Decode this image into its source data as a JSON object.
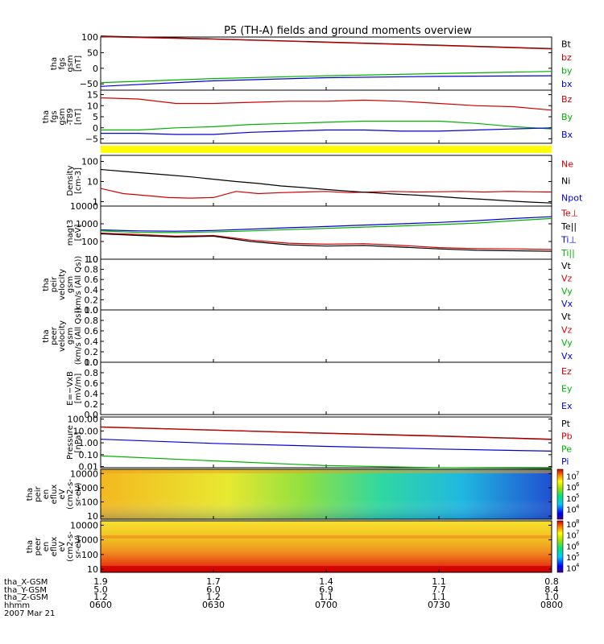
{
  "title": "P5 (TH-A) fields and ground moments overview",
  "time_axis": {
    "ticks": [
      "0600",
      "0630",
      "0700",
      "0730",
      "0800"
    ],
    "rows": [
      {
        "label": "tha_X-GSM",
        "values": [
          "1.9",
          "1.7",
          "1.4",
          "1.1",
          "0.8"
        ]
      },
      {
        "label": "tha_Y-GSM",
        "values": [
          "5.0",
          "6.0",
          "6.9",
          "7.7",
          "8.4"
        ]
      },
      {
        "label": "tha_Z-GSM",
        "values": [
          "1.2",
          "1.2",
          "1.1",
          "1.1",
          "1.0"
        ]
      },
      {
        "label": "hhmm",
        "values": []
      },
      {
        "label": "2007 Mar 21",
        "values": []
      }
    ]
  },
  "colors": {
    "black": "#000000",
    "red": "#d00000",
    "green": "#00d000",
    "blue": "#0000d0",
    "yellow": "#ffff00"
  },
  "panels": [
    {
      "id": "fgs",
      "ylabel": [
        "tha",
        "fgs",
        "gsm",
        "[nT]"
      ],
      "scale": "linear",
      "ylim": [
        -70,
        100
      ],
      "ticks": [
        "100",
        "50",
        "0",
        "−50"
      ],
      "tickvals": [
        100,
        50,
        0,
        -50
      ],
      "legend": [
        {
          "name": "Bt",
          "color": "#000000"
        },
        {
          "name": "bz",
          "color": "#d00000"
        },
        {
          "name": "by",
          "color": "#00b000"
        },
        {
          "name": "bx",
          "color": "#0000d0"
        }
      ]
    },
    {
      "id": "t89",
      "ylabel": [
        "tha",
        "fgs",
        "gsm",
        "-T89",
        "[nT]"
      ],
      "scale": "linear",
      "ylim": [
        -7,
        17
      ],
      "ticks": [
        "15",
        "10",
        "5",
        "0",
        "−5"
      ],
      "tickvals": [
        15,
        10,
        5,
        0,
        -5
      ],
      "legend": [
        {
          "name": "Bz",
          "color": "#d00000"
        },
        {
          "name": "By",
          "color": "#00b000"
        },
        {
          "name": "Bx",
          "color": "#0000d0"
        }
      ]
    },
    {
      "id": "density",
      "ylabel": [
        "Density",
        "[cm-3]"
      ],
      "scale": "log",
      "ylim": [
        0.6,
        200
      ],
      "ticks": [
        "100",
        "10",
        "1"
      ],
      "tickvals": [
        100,
        10,
        1
      ],
      "legend": [
        {
          "name": "Ne",
          "color": "#d00000"
        },
        {
          "name": "Ni",
          "color": "#000000"
        },
        {
          "name": "Npot",
          "color": "#0000d0"
        }
      ]
    },
    {
      "id": "temp",
      "ylabel": [
        "magt3",
        "[eV]"
      ],
      "scale": "log",
      "ylim": [
        10,
        10000
      ],
      "ticks": [
        "10000",
        "1000",
        "100",
        "10"
      ],
      "tickvals": [
        10000,
        1000,
        100,
        10
      ],
      "legend": [
        {
          "name": "Te⊥",
          "color": "#d00000"
        },
        {
          "name": "Te||",
          "color": "#000000"
        },
        {
          "name": "Ti⊥",
          "color": "#0000d0"
        },
        {
          "name": "Ti||",
          "color": "#00b000"
        }
      ]
    },
    {
      "id": "peir_v",
      "ylabel": [
        "tha",
        "peir",
        "velocity",
        "gsm",
        "(km/s (All Qs))"
      ],
      "scale": "linear",
      "ylim": [
        0,
        1
      ],
      "ticks": [
        "1.0",
        "0.8",
        "0.6",
        "0.4",
        "0.2",
        "0.0"
      ],
      "tickvals": [
        1.0,
        0.8,
        0.6,
        0.4,
        0.2,
        0.0
      ],
      "legend": [
        {
          "name": "Vt",
          "color": "#000000"
        },
        {
          "name": "Vz",
          "color": "#d00000"
        },
        {
          "name": "Vy",
          "color": "#00b000"
        },
        {
          "name": "Vx",
          "color": "#0000d0"
        }
      ]
    },
    {
      "id": "peer_v",
      "ylabel": [
        "tha",
        "peer",
        "velocity",
        "gsm",
        "(km/s (All Qs))"
      ],
      "scale": "linear",
      "ylim": [
        0,
        1
      ],
      "ticks": [
        "1.0",
        "0.8",
        "0.6",
        "0.4",
        "0.2",
        "0.0"
      ],
      "tickvals": [
        1.0,
        0.8,
        0.6,
        0.4,
        0.2,
        0.0
      ],
      "legend": [
        {
          "name": "Vt",
          "color": "#000000"
        },
        {
          "name": "Vz",
          "color": "#d00000"
        },
        {
          "name": "Vy",
          "color": "#00b000"
        },
        {
          "name": "Vx",
          "color": "#0000d0"
        }
      ]
    },
    {
      "id": "efield",
      "ylabel": [
        "E=−VxB",
        "[mV/m]"
      ],
      "scale": "linear",
      "ylim": [
        0,
        1
      ],
      "ticks": [
        "1.0",
        "0.8",
        "0.6",
        "0.4",
        "0.2",
        "0.0"
      ],
      "tickvals": [
        1.0,
        0.8,
        0.6,
        0.4,
        0.2,
        0.0
      ],
      "legend": [
        {
          "name": "Ez",
          "color": "#d00000"
        },
        {
          "name": "Ey",
          "color": "#00b000"
        },
        {
          "name": "Ex",
          "color": "#0000d0"
        }
      ]
    },
    {
      "id": "pressure",
      "ylabel": [
        "Pressure",
        "[nPa]"
      ],
      "scale": "log",
      "ylim": [
        0.008,
        150
      ],
      "ticks": [
        "100.00",
        "10.00",
        "1.00",
        "0.10",
        "0.01"
      ],
      "tickvals": [
        100,
        10,
        1,
        0.1,
        0.01
      ],
      "legend": [
        {
          "name": "Pt",
          "color": "#000000"
        },
        {
          "name": "Pb",
          "color": "#d00000"
        },
        {
          "name": "Pe",
          "color": "#00b000"
        },
        {
          "name": "Pi",
          "color": "#0000d0"
        }
      ]
    },
    {
      "id": "peir_spec",
      "ylabel": [
        "tha",
        "peir",
        "en",
        "eflux",
        "eV",
        "(cm2-s-",
        "sr-eV)"
      ],
      "scale": "log",
      "ylim": [
        6,
        20000
      ],
      "ticks": [
        "10000",
        "1000",
        "100",
        "10"
      ],
      "tickvals": [
        10000,
        1000,
        100,
        10
      ],
      "colorbar": {
        "ticks": [
          "10",
          "10",
          "10",
          "10"
        ],
        "exps": [
          "7",
          "6",
          "5",
          "4"
        ],
        "expvals": [
          7,
          6,
          5,
          4
        ],
        "range": [
          3.1,
          7.6
        ]
      }
    },
    {
      "id": "peer_spec",
      "ylabel": [
        "tha",
        "peer",
        "en",
        "eflux",
        "eV",
        "(cm2-s-",
        "sr-eV)"
      ],
      "scale": "log",
      "ylim": [
        6,
        20000
      ],
      "ticks": [
        "10000",
        "1000",
        "100",
        "10"
      ],
      "tickvals": [
        10000,
        1000,
        100,
        10
      ],
      "colorbar": {
        "ticks": [
          "10",
          "10",
          "10",
          "10",
          "10"
        ],
        "exps": [
          "8",
          "7",
          "6",
          "5",
          "4"
        ],
        "expvals": [
          8,
          7,
          6,
          5,
          4
        ],
        "range": [
          3.6,
          8.3
        ]
      }
    }
  ],
  "chart_data": {
    "type": "line",
    "title": "P5 (TH-A) fields and ground moments overview",
    "x_range": [
      "0600",
      "0800"
    ],
    "panels": {
      "fgs": {
        "x": [
          0,
          30,
          60,
          90,
          120
        ],
        "series": [
          {
            "name": "Bt",
            "values": [
              103,
              94,
              84,
              74,
              63
            ]
          },
          {
            "name": "bz",
            "values": [
              101,
              93,
              83,
              73,
              62
            ]
          },
          {
            "name": "by",
            "values": [
              -46,
              -33,
              -24,
              -17,
              -10
            ]
          },
          {
            "name": "bx",
            "values": [
              -58,
              -40,
              -30,
              -26,
              -24
            ]
          }
        ]
      },
      "t89": {
        "x": [
          0,
          10,
          20,
          30,
          40,
          50,
          60,
          70,
          80,
          90,
          100,
          110,
          120
        ],
        "series": [
          {
            "name": "Bz",
            "values": [
              13.5,
              13,
              11,
              11,
              11.5,
              12,
              12,
              12.5,
              12,
              11,
              10,
              9.5,
              8
            ]
          },
          {
            "name": "By",
            "values": [
              -1,
              -1,
              0,
              0.5,
              1.5,
              2,
              2.5,
              3,
              3,
              3,
              2,
              0.5,
              -0.5
            ]
          },
          {
            "name": "Bx",
            "values": [
              -2.5,
              -2.5,
              -3,
              -3,
              -2,
              -1.5,
              -1,
              -1,
              -1.5,
              -1.5,
              -1,
              -0.5,
              0
            ]
          }
        ]
      },
      "density": {
        "x": [
          0,
          6,
          12,
          18,
          24,
          30,
          36,
          42,
          48,
          54,
          60,
          66,
          72,
          78,
          84,
          90,
          96,
          102,
          108,
          114,
          120
        ],
        "series": [
          {
            "name": "Ne",
            "values": [
              4.5,
              2.5,
              2.0,
              1.6,
              1.5,
              1.6,
              3.2,
              2.5,
              2.8,
              3.0,
              3.2,
              2.8,
              3.0,
              3.2,
              3.0,
              3.1,
              3.2,
              3.0,
              3.2,
              3.1,
              3.0
            ]
          },
          {
            "name": "Ni",
            "values": [
              40,
              32,
              26,
              21,
              17,
              13,
              10,
              8,
              6,
              5,
              4,
              3.3,
              2.8,
              2.4,
              2.1,
              1.8,
              1.5,
              1.3,
              1.1,
              0.95,
              0.85
            ]
          },
          {
            "name": "Npot",
            "values": []
          }
        ]
      },
      "temp": {
        "x": [
          0,
          10,
          20,
          30,
          40,
          50,
          60,
          70,
          80,
          90,
          100,
          110,
          120
        ],
        "series": [
          {
            "name": "Te⊥",
            "values": [
              300,
              250,
              200,
              220,
              120,
              80,
              70,
              75,
              60,
              45,
              40,
              38,
              35
            ]
          },
          {
            "name": "Te||",
            "values": [
              270,
              220,
              180,
              200,
              100,
              65,
              55,
              60,
              48,
              38,
              32,
              30,
              28
            ]
          },
          {
            "name": "Ti⊥",
            "values": [
              450,
              400,
              380,
              420,
              500,
              600,
              700,
              850,
              1000,
              1200,
              1500,
              2000,
              2500
            ]
          },
          {
            "name": "Ti||",
            "values": [
              400,
              330,
              320,
              350,
              400,
              470,
              550,
              650,
              760,
              900,
              1100,
              1500,
              2000
            ]
          }
        ]
      },
      "peir_v": {
        "x": [],
        "series": []
      },
      "peer_v": {
        "x": [],
        "series": []
      },
      "efield": {
        "x": [],
        "series": []
      },
      "pressure": {
        "x": [
          0,
          30,
          60,
          90,
          120
        ],
        "series": [
          {
            "name": "Pt",
            "values": [
              22,
              12,
              6.5,
              3.8,
              2.0
            ]
          },
          {
            "name": "Pb",
            "values": [
              21,
              11.5,
              6.2,
              3.6,
              1.9
            ]
          },
          {
            "name": "Pe",
            "values": [
              0.08,
              0.03,
              0.012,
              0.008,
              0.007
            ]
          },
          {
            "name": "Pi",
            "values": [
              2.0,
              0.9,
              0.5,
              0.3,
              0.2
            ]
          }
        ]
      }
    }
  }
}
